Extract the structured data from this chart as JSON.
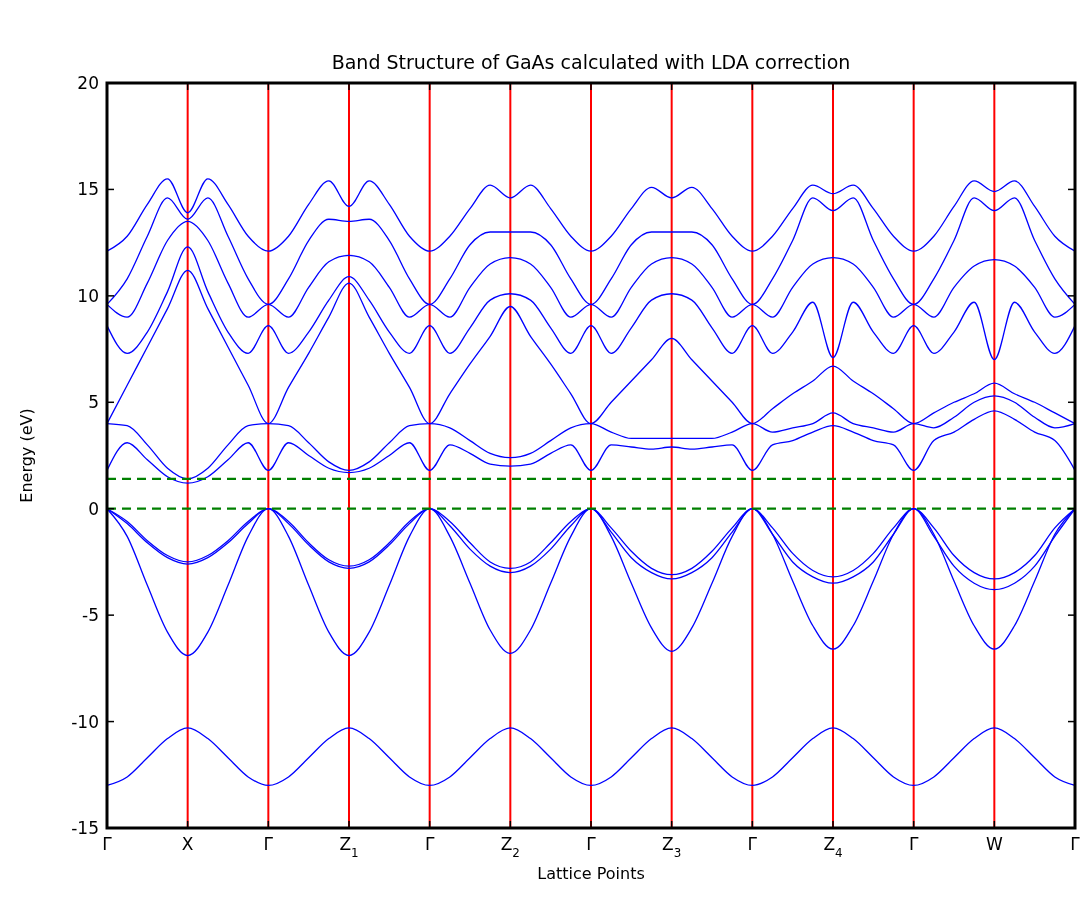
{
  "chart_data": {
    "type": "line",
    "title": "Band Structure of GaAs calculated with LDA correction",
    "xlabel": "Lattice Points",
    "ylabel": "Energy (eV)",
    "ylim": [
      -15,
      20
    ],
    "categories": [
      "Γ",
      null,
      null,
      null,
      "X",
      null,
      null,
      null,
      "Γ",
      null,
      null,
      null,
      "Z$_{1}$",
      null,
      null,
      null,
      "Γ",
      null,
      null,
      null,
      "Z$_{2}$",
      null,
      null,
      null,
      "Γ",
      null,
      null,
      null,
      "Z$_{3}$",
      null,
      null,
      null,
      "Γ",
      null,
      null,
      null,
      "Z$_{4}$",
      null,
      null,
      null,
      "Γ",
      null,
      null,
      null,
      "W",
      null,
      null,
      null,
      "Γ"
    ],
    "yticks": [
      -15,
      -10,
      -5,
      0,
      5,
      10,
      15,
      20
    ],
    "grid": "x",
    "marker": "none",
    "line_style": "solid",
    "series": [
      {
        "color": "#0000ff",
        "values": [
          -13,
          -12.6,
          -11.7,
          -10.8,
          -10.3,
          -10.8,
          -11.7,
          -12.6,
          -13,
          -12.6,
          -11.7,
          -10.8,
          -10.3,
          -10.8,
          -11.7,
          -12.6,
          -13,
          -12.6,
          -11.7,
          -10.8,
          -10.3,
          -10.8,
          -11.7,
          -12.6,
          -13,
          -12.6,
          -11.7,
          -10.8,
          -10.3,
          -10.8,
          -11.7,
          -12.6,
          -13,
          -12.6,
          -11.7,
          -10.8,
          -10.3,
          -10.8,
          -11.7,
          -12.6,
          -13,
          -12.6,
          -11.7,
          -10.8,
          -10.3,
          -10.8,
          -11.7,
          -12.6,
          -13
        ]
      },
      {
        "color": "#0000ff",
        "values": [
          0,
          -1.3,
          -3.6,
          -5.8,
          -6.9,
          -5.8,
          -3.6,
          -1.3,
          0,
          -1.3,
          -3.6,
          -5.8,
          -6.9,
          -5.8,
          -3.6,
          -1.3,
          0,
          -1.3,
          -3.5,
          -5.7,
          -6.8,
          -5.7,
          -3.5,
          -1.3,
          0,
          -1.3,
          -3.5,
          -5.6,
          -6.7,
          -5.6,
          -3.5,
          -1.3,
          0,
          -1.2,
          -3.4,
          -5.5,
          -6.6,
          -5.5,
          -3.4,
          -1.2,
          0,
          -1.2,
          -3.4,
          -5.5,
          -6.6,
          -5.5,
          -3.4,
          -1.2,
          0
        ]
      },
      {
        "color": "#0000ff",
        "values": [
          0,
          -0.6,
          -1.5,
          -2.2,
          -2.5,
          -2.2,
          -1.5,
          -0.6,
          0,
          -0.6,
          -1.6,
          -2.4,
          -2.7,
          -2.4,
          -1.6,
          -0.6,
          0,
          -0.6,
          -1.6,
          -2.5,
          -2.8,
          -2.5,
          -1.6,
          -0.6,
          0,
          -0.9,
          -2.0,
          -2.8,
          -3.1,
          -2.8,
          -2.0,
          -0.9,
          0,
          -0.9,
          -2.1,
          -2.9,
          -3.2,
          -2.9,
          -2.1,
          -0.9,
          0,
          -0.9,
          -2.2,
          -3.0,
          -3.3,
          -3.0,
          -2.2,
          -0.9,
          0
        ]
      },
      {
        "color": "#0000ff",
        "values": [
          0,
          -0.7,
          -1.6,
          -2.3,
          -2.6,
          -2.3,
          -1.6,
          -0.7,
          0,
          -0.7,
          -1.7,
          -2.5,
          -2.8,
          -2.5,
          -1.7,
          -0.7,
          0,
          -0.8,
          -1.9,
          -2.7,
          -3.0,
          -2.7,
          -1.9,
          -0.8,
          0,
          -1.1,
          -2.3,
          -3.0,
          -3.3,
          -3.0,
          -2.3,
          -1.1,
          0,
          -1.2,
          -2.5,
          -3.2,
          -3.5,
          -3.2,
          -2.5,
          -1.2,
          0,
          -1.3,
          -2.7,
          -3.5,
          -3.8,
          -3.5,
          -2.7,
          -1.3,
          0
        ]
      },
      {
        "color": "#0000ff",
        "values": [
          1.8,
          3.1,
          2.3,
          1.5,
          1.2,
          1.5,
          2.3,
          3.1,
          1.8,
          3.1,
          2.5,
          1.9,
          1.7,
          1.9,
          2.5,
          3.1,
          1.8,
          3.0,
          2.6,
          2.1,
          2.0,
          2.1,
          2.6,
          3.0,
          1.8,
          3.0,
          2.9,
          2.8,
          2.9,
          2.8,
          2.9,
          3.0,
          1.8,
          3.0,
          3.2,
          3.6,
          3.9,
          3.6,
          3.2,
          3.0,
          1.8,
          3.2,
          3.6,
          4.2,
          4.6,
          4.2,
          3.6,
          3.2,
          1.8
        ]
      },
      {
        "color": "#0000ff",
        "values": [
          4.0,
          3.9,
          3.0,
          1.9,
          1.4,
          1.9,
          3.0,
          3.9,
          4.0,
          3.9,
          3.1,
          2.2,
          1.8,
          2.2,
          3.1,
          3.9,
          4.0,
          3.8,
          3.2,
          2.6,
          2.4,
          2.6,
          3.2,
          3.8,
          4.0,
          3.6,
          3.3,
          3.3,
          3.3,
          3.3,
          3.3,
          3.6,
          4.0,
          3.6,
          3.8,
          4.0,
          4.5,
          4.0,
          3.8,
          3.6,
          4.0,
          3.8,
          4.3,
          5.0,
          5.3,
          5.0,
          4.3,
          3.8,
          4.0
        ]
      },
      {
        "color": "#0000ff",
        "values": [
          4.0,
          5.8,
          7.6,
          9.4,
          11.2,
          9.4,
          7.6,
          5.8,
          4.0,
          5.7,
          7.3,
          9.0,
          10.6,
          9.0,
          7.3,
          5.7,
          4.0,
          5.4,
          6.8,
          8.1,
          9.5,
          8.1,
          6.8,
          5.4,
          4.0,
          5.0,
          6.0,
          7.0,
          8.0,
          7.0,
          6.0,
          5.0,
          4.0,
          4.7,
          5.4,
          6.0,
          6.7,
          6.0,
          5.4,
          4.7,
          4.0,
          4.5,
          5.0,
          5.4,
          5.9,
          5.4,
          5.0,
          4.5,
          4.0
        ]
      },
      {
        "color": "#0000ff",
        "values": [
          8.6,
          7.3,
          8.3,
          10.2,
          12.3,
          10.2,
          8.3,
          7.3,
          8.6,
          7.3,
          8.3,
          9.8,
          10.9,
          9.8,
          8.3,
          7.3,
          8.6,
          7.3,
          8.5,
          9.8,
          10.1,
          9.8,
          8.5,
          7.3,
          8.6,
          7.3,
          8.5,
          9.8,
          10.1,
          9.8,
          8.5,
          7.3,
          8.6,
          7.3,
          8.3,
          9.7,
          7.1,
          9.7,
          8.3,
          7.3,
          8.6,
          7.3,
          8.3,
          9.7,
          7.0,
          9.7,
          8.3,
          7.3,
          8.6
        ]
      },
      {
        "color": "#0000ff",
        "values": [
          9.6,
          9.0,
          10.6,
          12.6,
          13.5,
          12.6,
          10.6,
          9.0,
          9.6,
          9.0,
          10.4,
          11.6,
          11.9,
          11.6,
          10.4,
          9.0,
          9.6,
          9.0,
          10.4,
          11.5,
          11.8,
          11.5,
          10.4,
          9.0,
          9.6,
          9.0,
          10.4,
          11.5,
          11.8,
          11.5,
          10.4,
          9.0,
          9.6,
          9.0,
          10.4,
          11.5,
          11.8,
          11.5,
          10.4,
          9.0,
          9.6,
          9.0,
          10.4,
          11.4,
          11.7,
          11.4,
          10.4,
          9.0,
          9.6
        ]
      },
      {
        "color": "#0000ff",
        "values": [
          9.6,
          10.8,
          12.8,
          14.6,
          13.6,
          14.6,
          12.8,
          10.8,
          9.6,
          10.8,
          12.6,
          13.6,
          13.5,
          13.6,
          12.6,
          10.8,
          9.6,
          10.8,
          12.4,
          13.0,
          13.0,
          13.0,
          12.4,
          10.8,
          9.6,
          10.8,
          12.4,
          13.0,
          13.0,
          13.0,
          12.4,
          10.8,
          9.6,
          10.8,
          12.6,
          14.6,
          14.0,
          14.6,
          12.6,
          10.8,
          9.6,
          10.8,
          12.6,
          14.6,
          14.0,
          14.6,
          12.6,
          10.8,
          9.6
        ]
      },
      {
        "color": "#0000ff",
        "values": [
          12.1,
          12.8,
          14.3,
          15.5,
          13.9,
          15.5,
          14.3,
          12.8,
          12.1,
          12.8,
          14.3,
          15.4,
          14.2,
          15.4,
          14.3,
          12.8,
          12.1,
          12.8,
          14.1,
          15.2,
          14.6,
          15.2,
          14.1,
          12.8,
          12.1,
          12.8,
          14.1,
          15.1,
          14.6,
          15.1,
          14.1,
          12.8,
          12.1,
          12.8,
          14.1,
          15.2,
          14.8,
          15.2,
          14.1,
          12.8,
          12.1,
          12.8,
          14.2,
          15.4,
          14.9,
          15.4,
          14.2,
          12.8,
          12.1
        ]
      }
    ],
    "ref_lines": [
      {
        "axis": "y",
        "value": 0,
        "color": "#008000",
        "line_style": "dashed"
      },
      {
        "axis": "y",
        "value": 1.4,
        "color": "#008000",
        "line_style": "dashed"
      }
    ]
  }
}
